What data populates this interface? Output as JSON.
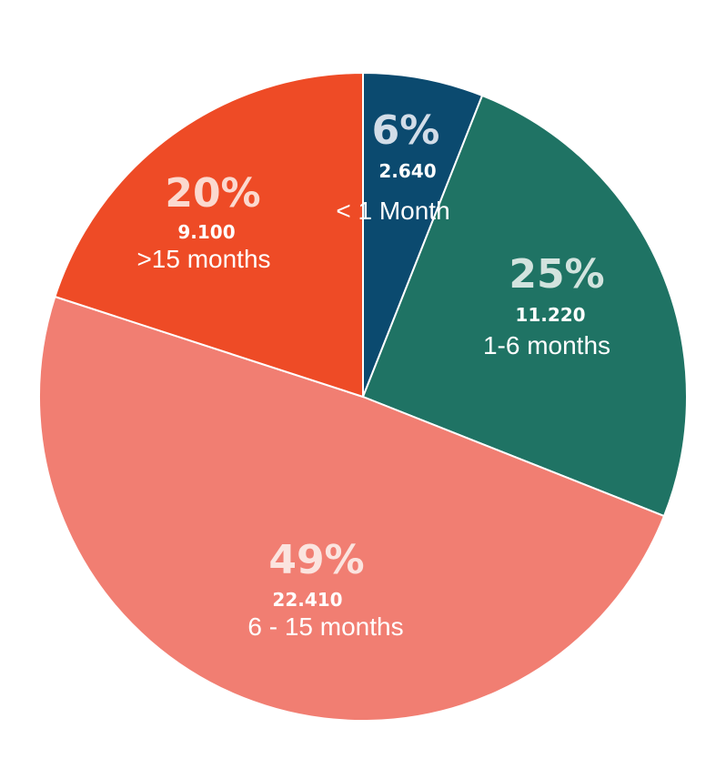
{
  "chart_data": {
    "type": "pie",
    "slices": [
      {
        "percent": "6%",
        "value": "2.640",
        "label": "< 1 Month",
        "share": 6,
        "color": "#0b4a6f",
        "pct_color": "#d2dde8"
      },
      {
        "percent": "25%",
        "value": "11.220",
        "label": "1-6 months",
        "share": 25,
        "color": "#1f7364",
        "pct_color": "#d2e3de"
      },
      {
        "percent": "49%",
        "value": "22.410",
        "label": "6 - 15 months",
        "share": 49,
        "color": "#f17e72",
        "pct_color": "#fbe4df"
      },
      {
        "percent": "20%",
        "value": "9.100",
        "label": ">15 months",
        "share": 20,
        "color": "#ee4b26",
        "pct_color": "#fbd9cf"
      }
    ]
  }
}
